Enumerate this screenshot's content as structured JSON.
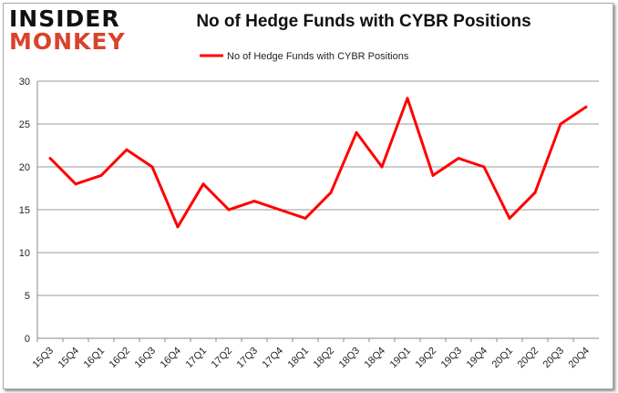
{
  "logo": {
    "line1": "INSIDER",
    "line2": "MONKEY"
  },
  "chart_data": {
    "type": "line",
    "title": "No of Hedge Funds with CYBR Positions",
    "legend": "top-center",
    "grid": true,
    "categories": [
      "15Q3",
      "15Q4",
      "16Q1",
      "16Q2",
      "16Q3",
      "16Q4",
      "17Q1",
      "17Q2",
      "17Q3",
      "17Q4",
      "18Q1",
      "18Q2",
      "18Q3",
      "18Q4",
      "19Q1",
      "19Q2",
      "19Q3",
      "19Q4",
      "20Q1",
      "20Q2",
      "20Q3",
      "20Q4"
    ],
    "series": [
      {
        "name": "No of Hedge Funds with CYBR Positions",
        "color": "#ff0000",
        "values": [
          21,
          18,
          19,
          22,
          20,
          13,
          18,
          15,
          16,
          15,
          14,
          17,
          24,
          20,
          28,
          19,
          21,
          20,
          14,
          17,
          25,
          27
        ]
      }
    ],
    "ylim": [
      0,
      30
    ],
    "yticks": [
      0,
      5,
      10,
      15,
      20,
      25,
      30
    ]
  }
}
